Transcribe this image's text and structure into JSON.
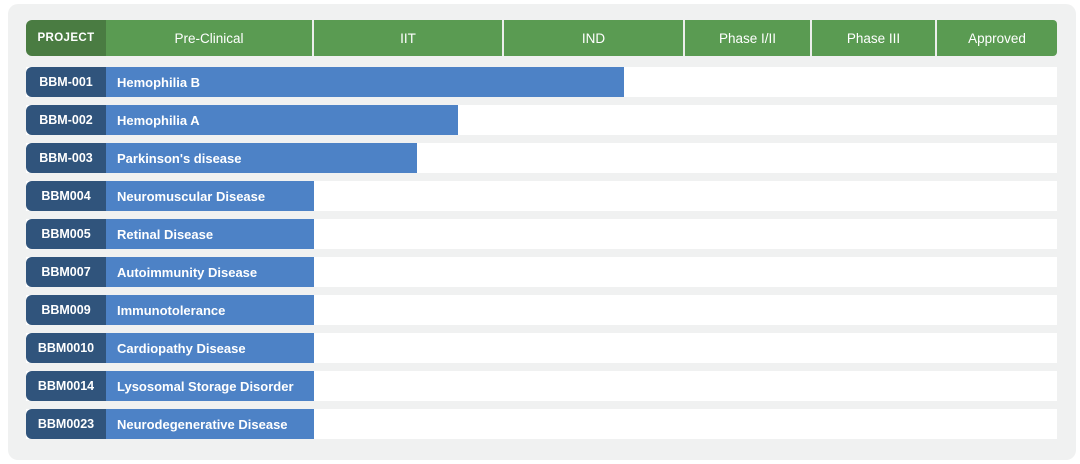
{
  "colors": {
    "header_project_bg": "#4a7c42",
    "header_phase_bg": "#5a9b52",
    "badge_bg": "#30547c",
    "bar_bg": "#4d82c6",
    "panel_bg": "#f0f1f1",
    "row_track_bg": "#ffffff",
    "text": "#ffffff"
  },
  "header": {
    "project_label": "PROJECT",
    "phases": [
      "Pre-Clinical",
      "IIT",
      "IND",
      "Phase I/II",
      "Phase III",
      "Approved"
    ]
  },
  "chart_data": {
    "type": "bar",
    "orientation": "horizontal",
    "title": "",
    "legend": "none",
    "phase_columns": [
      "Pre-Clinical",
      "IIT",
      "IND",
      "Phase I/II",
      "Phase III",
      "Approved"
    ],
    "projects": [
      {
        "id": "BBM-001",
        "indication": "Hemophilia B",
        "reached_phase": "IND",
        "bar_width_pct": 50.2
      },
      {
        "id": "BBM-002",
        "indication": "Hemophilia A",
        "reached_phase": "IIT",
        "bar_width_pct": 34.1
      },
      {
        "id": "BBM-003",
        "indication": "Parkinson's disease",
        "reached_phase": "IIT",
        "bar_width_pct": 30.2
      },
      {
        "id": "BBM004",
        "indication": "Neuromuscular Disease",
        "reached_phase": "Pre-Clinical",
        "bar_width_pct": 20.2
      },
      {
        "id": "BBM005",
        "indication": "Retinal Disease",
        "reached_phase": "Pre-Clinical",
        "bar_width_pct": 20.2
      },
      {
        "id": "BBM007",
        "indication": "Autoimmunity Disease",
        "reached_phase": "Pre-Clinical",
        "bar_width_pct": 20.2
      },
      {
        "id": "BBM009",
        "indication": "Immunotolerance",
        "reached_phase": "Pre-Clinical",
        "bar_width_pct": 20.2
      },
      {
        "id": "BBM0010",
        "indication": "Cardiopathy Disease",
        "reached_phase": "Pre-Clinical",
        "bar_width_pct": 20.2
      },
      {
        "id": "BBM0014",
        "indication": "Lysosomal Storage Disorder",
        "reached_phase": "Pre-Clinical",
        "bar_width_pct": 20.2
      },
      {
        "id": "BBM0023",
        "indication": "Neurodegenerative Disease",
        "reached_phase": "Pre-Clinical",
        "bar_width_pct": 20.2
      }
    ]
  }
}
